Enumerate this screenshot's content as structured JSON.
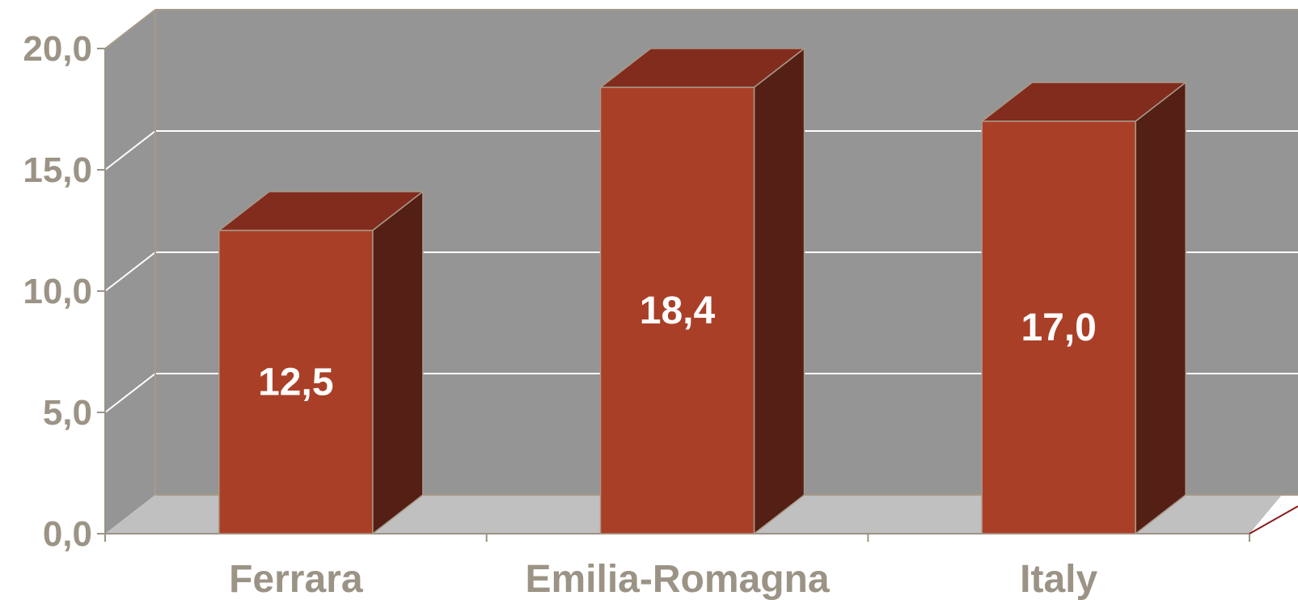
{
  "chart_data": {
    "type": "bar",
    "style": "3d-column",
    "categories": [
      "Ferrara",
      "Emilia-Romagna",
      "Italy"
    ],
    "values": [
      12.5,
      18.4,
      17.0
    ],
    "value_labels": [
      "12,5",
      "18,4",
      "17,0"
    ],
    "y_ticks": [
      "0,0",
      "5,0",
      "10,0",
      "15,0",
      "20,0"
    ],
    "ylim": [
      0,
      20
    ],
    "grid": true,
    "legend": "none",
    "colors": {
      "wall": "#959595",
      "floor": "#c0c0c0",
      "bar_front": "#aa3f27",
      "bar_top": "#822c1e",
      "bar_side": "#541f15",
      "gridline": "#ffffff",
      "axis_text": "#9b9385"
    }
  }
}
